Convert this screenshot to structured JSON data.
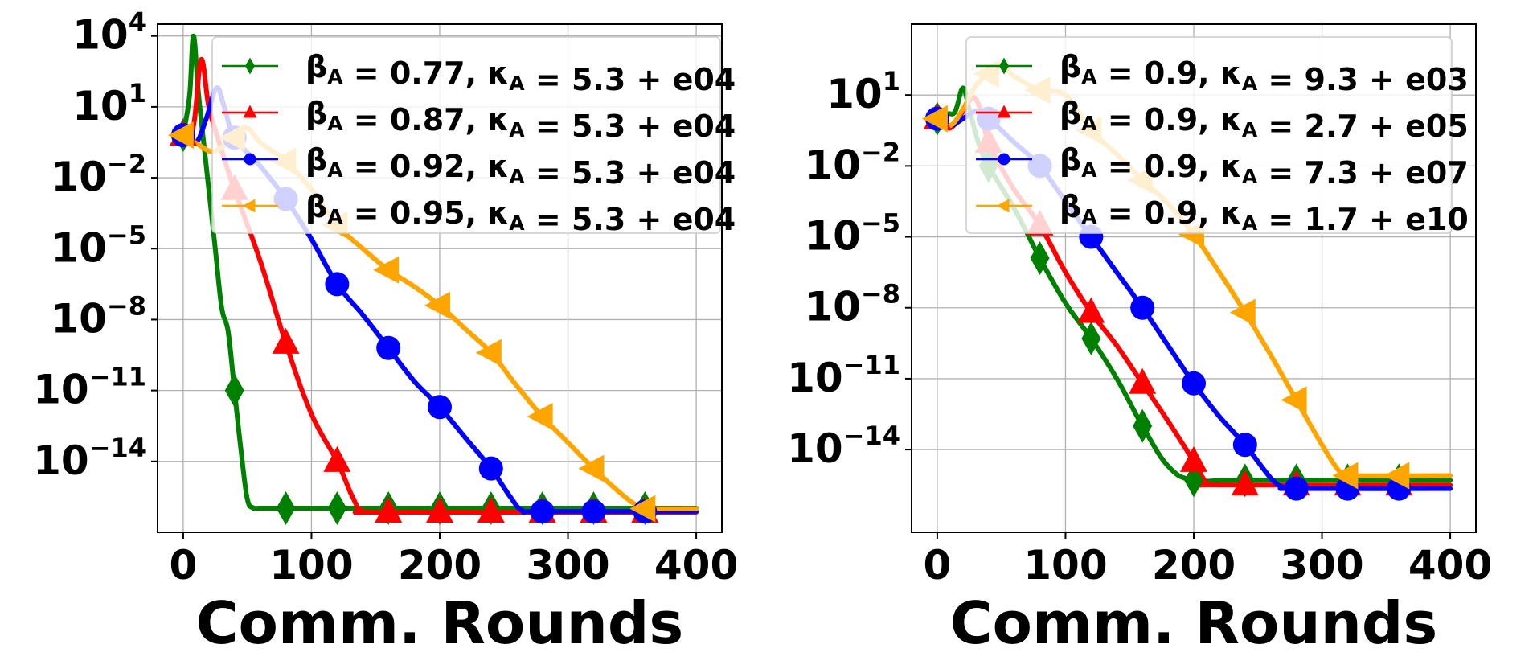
{
  "chart_data": [
    {
      "type": "line",
      "title": "",
      "xlabel": "Comm. Rounds",
      "ylabel": "",
      "xlim": [
        -20,
        420
      ],
      "ylim_exp": [
        -17,
        4.5
      ],
      "y_scale": "log",
      "grid": true,
      "legend_position": "top-right",
      "xticks": [
        "0",
        "100",
        "200",
        "300",
        "400"
      ],
      "xtick_values": [
        0,
        100,
        200,
        300,
        400
      ],
      "yticks": [
        {
          "base": "10",
          "exp": "4",
          "value": 4
        },
        {
          "base": "10",
          "exp": "1",
          "value": 1
        },
        {
          "base": "10",
          "exp": "−2",
          "value": -2
        },
        {
          "base": "10",
          "exp": "−5",
          "value": -5
        },
        {
          "base": "10",
          "exp": "−8",
          "value": -8
        },
        {
          "base": "10",
          "exp": "−11",
          "value": -11
        },
        {
          "base": "10",
          "exp": "−14",
          "value": -14
        }
      ],
      "series": [
        {
          "name": "βA = 0.77, κA = 5.3 + e04",
          "legend": {
            "beta": "0.77",
            "kappa": "5.3 + e04"
          },
          "color": "#008000",
          "marker": "diamond",
          "line": [
            [
              0,
              -0.2
            ],
            [
              5,
              1.5
            ],
            [
              8,
              4.0
            ],
            [
              12,
              1.5
            ],
            [
              18,
              -1.5
            ],
            [
              25,
              -5
            ],
            [
              30,
              -7.5
            ],
            [
              35,
              -8.5
            ],
            [
              40,
              -11
            ],
            [
              45,
              -13.5
            ],
            [
              50,
              -15.6
            ],
            [
              55,
              -15.97
            ],
            [
              60,
              -15.98
            ],
            [
              100,
              -15.98
            ],
            [
              400,
              -15.98
            ]
          ],
          "markers": [
            [
              0,
              -0.2
            ],
            [
              40,
              -11
            ],
            [
              80,
              -15.98
            ],
            [
              120,
              -15.98
            ],
            [
              160,
              -15.98
            ],
            [
              200,
              -15.98
            ],
            [
              240,
              -15.98
            ],
            [
              280,
              -15.98
            ],
            [
              320,
              -15.98
            ],
            [
              360,
              -15.98
            ]
          ]
        },
        {
          "name": "βA = 0.87, κA = 5.3 + e04",
          "legend": {
            "beta": "0.87",
            "kappa": "5.3 + e04"
          },
          "color": "#ff0000",
          "marker": "triangle-up",
          "line": [
            [
              0,
              -0.2
            ],
            [
              8,
              0.2
            ],
            [
              14,
              3.0
            ],
            [
              20,
              1.0
            ],
            [
              28,
              -0.5
            ],
            [
              40,
              -2.5
            ],
            [
              60,
              -5.5
            ],
            [
              80,
              -9.0
            ],
            [
              100,
              -12.0
            ],
            [
              120,
              -14.0
            ],
            [
              132,
              -15.5
            ],
            [
              140,
              -16.1
            ],
            [
              160,
              -16.15
            ],
            [
              400,
              -16.15
            ]
          ],
          "markers": [
            [
              0,
              -0.2
            ],
            [
              40,
              -2.5
            ],
            [
              80,
              -9.0
            ],
            [
              120,
              -14.0
            ],
            [
              160,
              -16.15
            ],
            [
              200,
              -16.15
            ],
            [
              240,
              -16.15
            ],
            [
              280,
              -16.15
            ],
            [
              320,
              -16.15
            ],
            [
              360,
              -16.15
            ]
          ]
        },
        {
          "name": "βA = 0.92, κA = 5.3 + e04",
          "legend": {
            "beta": "0.92",
            "kappa": "5.3 + e04"
          },
          "color": "#0000ff",
          "marker": "circle",
          "line": [
            [
              0,
              -0.2
            ],
            [
              10,
              -0.5
            ],
            [
              18,
              0.5
            ],
            [
              26,
              1.8
            ],
            [
              32,
              1.0
            ],
            [
              40,
              -0.3
            ],
            [
              60,
              -1.5
            ],
            [
              80,
              -2.9
            ],
            [
              100,
              -4.6
            ],
            [
              120,
              -6.5
            ],
            [
              140,
              -7.8
            ],
            [
              160,
              -9.2
            ],
            [
              180,
              -10.6
            ],
            [
              200,
              -11.7
            ],
            [
              220,
              -13.0
            ],
            [
              240,
              -14.3
            ],
            [
              255,
              -15.5
            ],
            [
              265,
              -16.1
            ],
            [
              280,
              -16.12
            ],
            [
              400,
              -16.12
            ]
          ],
          "markers": [
            [
              0,
              -0.2
            ],
            [
              40,
              -0.3
            ],
            [
              80,
              -2.9
            ],
            [
              120,
              -6.5
            ],
            [
              160,
              -9.2
            ],
            [
              200,
              -11.7
            ],
            [
              240,
              -14.3
            ],
            [
              280,
              -16.12
            ],
            [
              320,
              -16.12
            ],
            [
              360,
              -16.12
            ]
          ]
        },
        {
          "name": "βA = 0.95, κA = 5.3 + e04",
          "legend": {
            "beta": "0.95",
            "kappa": "5.3 + e04"
          },
          "color": "#ffa500",
          "marker": "triangle-left",
          "line": [
            [
              0,
              -0.2
            ],
            [
              12,
              -0.6
            ],
            [
              22,
              -0.9
            ],
            [
              30,
              -0.7
            ],
            [
              40,
              -0.3
            ],
            [
              50,
              0.1
            ],
            [
              60,
              -0.5
            ],
            [
              80,
              -1.3
            ],
            [
              100,
              -2.5
            ],
            [
              120,
              -4.0
            ],
            [
              140,
              -5.0
            ],
            [
              160,
              -5.9
            ],
            [
              180,
              -6.6
            ],
            [
              200,
              -7.4
            ],
            [
              220,
              -8.4
            ],
            [
              240,
              -9.4
            ],
            [
              260,
              -10.8
            ],
            [
              280,
              -12.1
            ],
            [
              300,
              -13.2
            ],
            [
              320,
              -14.3
            ],
            [
              340,
              -15.3
            ],
            [
              355,
              -15.9
            ],
            [
              365,
              -16.0
            ],
            [
              400,
              -16.0
            ]
          ],
          "markers": [
            [
              0,
              -0.2
            ],
            [
              40,
              -0.3
            ],
            [
              80,
              -1.3
            ],
            [
              120,
              -4.0
            ],
            [
              160,
              -5.9
            ],
            [
              200,
              -7.4
            ],
            [
              240,
              -9.4
            ],
            [
              280,
              -12.1
            ],
            [
              320,
              -14.3
            ],
            [
              360,
              -16.0
            ]
          ]
        }
      ]
    },
    {
      "type": "line",
      "title": "",
      "xlabel": "Comm. Rounds",
      "ylabel": "",
      "xlim": [
        -20,
        420
      ],
      "ylim_exp": [
        -17.5,
        4.0
      ],
      "y_scale": "log",
      "grid": true,
      "legend_position": "top-right",
      "xticks": [
        "0",
        "100",
        "200",
        "300",
        "400"
      ],
      "xtick_values": [
        0,
        100,
        200,
        300,
        400
      ],
      "yticks": [
        {
          "base": "10",
          "exp": "1",
          "value": 1
        },
        {
          "base": "10",
          "exp": "−2",
          "value": -2
        },
        {
          "base": "10",
          "exp": "−5",
          "value": -5
        },
        {
          "base": "10",
          "exp": "−8",
          "value": -8
        },
        {
          "base": "10",
          "exp": "−11",
          "value": -11
        },
        {
          "base": "10",
          "exp": "−14",
          "value": -14
        }
      ],
      "series": [
        {
          "name": "βA = 0.9, κA = 9.3 + e03",
          "legend": {
            "beta": "0.9",
            "kappa": "9.3 + e03"
          },
          "color": "#008000",
          "marker": "diamond",
          "line": [
            [
              0,
              0.0
            ],
            [
              8,
              0.2
            ],
            [
              14,
              0.3
            ],
            [
              20,
              1.3
            ],
            [
              25,
              0.4
            ],
            [
              32,
              -1.0
            ],
            [
              40,
              -2.0
            ],
            [
              60,
              -3.8
            ],
            [
              80,
              -5.9
            ],
            [
              100,
              -7.8
            ],
            [
              120,
              -9.3
            ],
            [
              140,
              -11.0
            ],
            [
              160,
              -13.0
            ],
            [
              180,
              -14.7
            ],
            [
              200,
              -15.3
            ],
            [
              240,
              -15.3
            ],
            [
              400,
              -15.3
            ]
          ],
          "markers": [
            [
              0,
              0.0
            ],
            [
              40,
              -2.0
            ],
            [
              80,
              -5.9
            ],
            [
              120,
              -9.3
            ],
            [
              160,
              -13.0
            ],
            [
              200,
              -15.3
            ],
            [
              240,
              -15.3
            ],
            [
              280,
              -15.3
            ],
            [
              320,
              -15.3
            ],
            [
              360,
              -15.3
            ]
          ]
        },
        {
          "name": "βA = 0.9, κA = 2.7 + e05",
          "legend": {
            "beta": "0.9",
            "kappa": "2.7 + e05"
          },
          "color": "#ff0000",
          "marker": "triangle-up",
          "line": [
            [
              0,
              0.0
            ],
            [
              10,
              -0.4
            ],
            [
              20,
              0.3
            ],
            [
              28,
              0.9
            ],
            [
              35,
              0.2
            ],
            [
              40,
              -1.0
            ],
            [
              60,
              -3.0
            ],
            [
              80,
              -4.5
            ],
            [
              100,
              -6.5
            ],
            [
              120,
              -8.2
            ],
            [
              140,
              -9.6
            ],
            [
              160,
              -11.2
            ],
            [
              180,
              -12.8
            ],
            [
              200,
              -14.5
            ],
            [
              210,
              -15.4
            ],
            [
              220,
              -15.5
            ],
            [
              400,
              -15.5
            ]
          ],
          "markers": [
            [
              0,
              0.0
            ],
            [
              40,
              -1.0
            ],
            [
              80,
              -4.5
            ],
            [
              120,
              -8.2
            ],
            [
              160,
              -11.2
            ],
            [
              200,
              -14.5
            ],
            [
              240,
              -15.5
            ],
            [
              280,
              -15.5
            ],
            [
              320,
              -15.5
            ],
            [
              360,
              -15.5
            ]
          ]
        },
        {
          "name": "βA = 0.9, κA = 7.3 + e07",
          "legend": {
            "beta": "0.9",
            "kappa": "7.3 + e07"
          },
          "color": "#0000ff",
          "marker": "circle",
          "line": [
            [
              0,
              0.0
            ],
            [
              10,
              -0.3
            ],
            [
              20,
              0.0
            ],
            [
              30,
              0.3
            ],
            [
              40,
              0.0
            ],
            [
              60,
              -1.0
            ],
            [
              80,
              -2.0
            ],
            [
              100,
              -3.5
            ],
            [
              120,
              -5.0
            ],
            [
              140,
              -6.5
            ],
            [
              160,
              -8.0
            ],
            [
              180,
              -9.6
            ],
            [
              200,
              -11.2
            ],
            [
              220,
              -12.6
            ],
            [
              240,
              -13.8
            ],
            [
              260,
              -15.2
            ],
            [
              270,
              -15.6
            ],
            [
              280,
              -15.65
            ],
            [
              400,
              -15.65
            ]
          ],
          "markers": [
            [
              0,
              0.0
            ],
            [
              40,
              0.0
            ],
            [
              80,
              -2.0
            ],
            [
              120,
              -5.0
            ],
            [
              160,
              -8.0
            ],
            [
              200,
              -11.2
            ],
            [
              240,
              -13.8
            ],
            [
              280,
              -15.65
            ],
            [
              320,
              -15.65
            ],
            [
              360,
              -15.65
            ]
          ]
        },
        {
          "name": "βA = 0.9, κA = 1.7 + e10",
          "legend": {
            "beta": "0.9",
            "kappa": "1.7 + e10"
          },
          "color": "#ffa500",
          "marker": "triangle-left",
          "line": [
            [
              0,
              0.0
            ],
            [
              10,
              -0.3
            ],
            [
              20,
              0.4
            ],
            [
              30,
              1.4
            ],
            [
              40,
              1.9
            ],
            [
              50,
              2.3
            ],
            [
              60,
              1.8
            ],
            [
              80,
              1.2
            ],
            [
              100,
              1.0
            ],
            [
              120,
              -0.5
            ],
            [
              140,
              -1.5
            ],
            [
              160,
              -2.6
            ],
            [
              180,
              -3.6
            ],
            [
              200,
              -4.9
            ],
            [
              220,
              -6.5
            ],
            [
              240,
              -8.2
            ],
            [
              260,
              -10.0
            ],
            [
              280,
              -11.9
            ],
            [
              300,
              -13.8
            ],
            [
              315,
              -15.0
            ],
            [
              325,
              -15.1
            ],
            [
              400,
              -15.1
            ]
          ],
          "markers": [
            [
              0,
              0.0
            ],
            [
              40,
              1.9
            ],
            [
              80,
              1.2
            ],
            [
              120,
              -0.5
            ],
            [
              160,
              -2.6
            ],
            [
              200,
              -4.9
            ],
            [
              240,
              -8.2
            ],
            [
              280,
              -11.9
            ],
            [
              320,
              -15.1
            ],
            [
              360,
              -15.1
            ]
          ]
        }
      ]
    }
  ]
}
